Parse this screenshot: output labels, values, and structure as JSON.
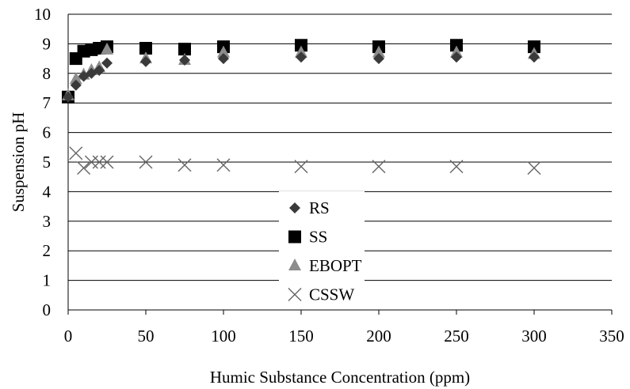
{
  "chart_data": {
    "type": "scatter",
    "title": "",
    "xlabel": "Humic Substance Concentration (ppm)",
    "ylabel": "Suspension pH",
    "xlim": [
      0,
      350
    ],
    "ylim": [
      0,
      10
    ],
    "xticks": [
      "0",
      "50",
      "100",
      "150",
      "200",
      "250",
      "300",
      "350"
    ],
    "yticks": [
      "0",
      "1",
      "2",
      "3",
      "4",
      "5",
      "6",
      "7",
      "8",
      "9",
      "10"
    ],
    "grid": "horizontal",
    "legend_position": "center",
    "series": [
      {
        "name": "RS",
        "marker": "diamond",
        "color": "#3a3a3a",
        "points": [
          [
            0,
            7.2
          ],
          [
            5,
            7.6
          ],
          [
            10,
            7.9
          ],
          [
            15,
            8.0
          ],
          [
            20,
            8.1
          ],
          [
            25,
            8.35
          ],
          [
            50,
            8.4
          ],
          [
            75,
            8.45
          ],
          [
            100,
            8.5
          ],
          [
            150,
            8.55
          ],
          [
            200,
            8.5
          ],
          [
            250,
            8.55
          ],
          [
            300,
            8.55
          ]
        ]
      },
      {
        "name": "SS",
        "marker": "square",
        "color": "#000000",
        "points": [
          [
            0,
            7.2
          ],
          [
            5,
            8.5
          ],
          [
            10,
            8.75
          ],
          [
            15,
            8.8
          ],
          [
            20,
            8.85
          ],
          [
            25,
            8.9
          ],
          [
            50,
            8.85
          ],
          [
            75,
            8.82
          ],
          [
            100,
            8.9
          ],
          [
            150,
            8.95
          ],
          [
            200,
            8.9
          ],
          [
            250,
            8.95
          ],
          [
            300,
            8.9
          ]
        ]
      },
      {
        "name": "EBOPT",
        "marker": "triangle",
        "color": "#8c8c8c",
        "points": [
          [
            0,
            7.25
          ],
          [
            5,
            7.8
          ],
          [
            10,
            7.95
          ],
          [
            15,
            8.1
          ],
          [
            20,
            8.2
          ],
          [
            25,
            8.8
          ],
          [
            50,
            8.5
          ],
          [
            75,
            8.45
          ],
          [
            100,
            8.7
          ],
          [
            150,
            8.7
          ],
          [
            200,
            8.7
          ],
          [
            250,
            8.7
          ],
          [
            300,
            8.65
          ]
        ]
      },
      {
        "name": "CSSW",
        "marker": "x",
        "color": "#666666",
        "points": [
          [
            5,
            5.3
          ],
          [
            10,
            4.8
          ],
          [
            15,
            5.0
          ],
          [
            20,
            5.0
          ],
          [
            25,
            5.0
          ],
          [
            50,
            5.0
          ],
          [
            75,
            4.9
          ],
          [
            100,
            4.9
          ],
          [
            150,
            4.85
          ],
          [
            200,
            4.85
          ],
          [
            250,
            4.85
          ],
          [
            300,
            4.8
          ]
        ]
      }
    ]
  }
}
